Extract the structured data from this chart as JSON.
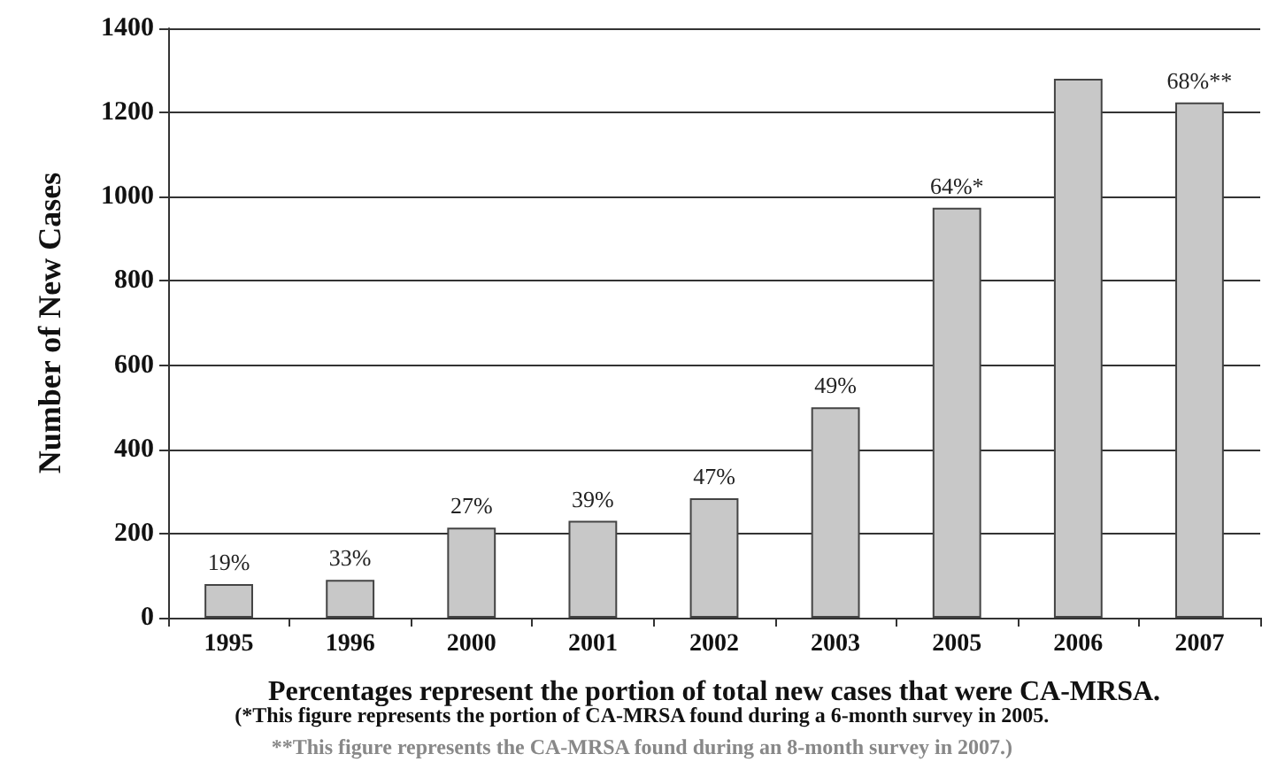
{
  "chart_data": {
    "type": "bar",
    "ylabel": "Number of New Cases",
    "xlabel": "Percentages represent the portion of total new cases that were CA-MRSA.",
    "annotations": [
      "(*This figure represents the portion of CA-MRSA found during a 6-month survey in 2005.",
      "**This figure represents the CA-MRSA found during an 8-month survey in 2007.)",
      {
        "text": "19%",
        "x": "1995",
        "y": 80
      },
      {
        "text": "33%",
        "x": "1996",
        "y": 90
      },
      {
        "text": "27%",
        "x": "2000",
        "y": 214
      },
      {
        "text": "39%",
        "x": "2001",
        "y": 230
      },
      {
        "text": "47%",
        "x": "2002",
        "y": 284
      },
      {
        "text": "49%",
        "x": "2003",
        "y": 500
      },
      {
        "text": "64%*",
        "x": "2005",
        "y": 974
      },
      {
        "text": "68%**",
        "x": "2007",
        "y": 1224
      }
    ],
    "categories": [
      "1995",
      "1996",
      "2000",
      "2001",
      "2002",
      "2003",
      "2005",
      "2006",
      "2007"
    ],
    "values": [
      80,
      90,
      214,
      230,
      284,
      500,
      974,
      1280,
      1224
    ],
    "color": "#c8c8c8",
    "ylim": [
      0,
      1400
    ],
    "yticks": [
      0,
      200,
      400,
      600,
      800,
      1000,
      1200,
      1400
    ],
    "grid": "y"
  }
}
